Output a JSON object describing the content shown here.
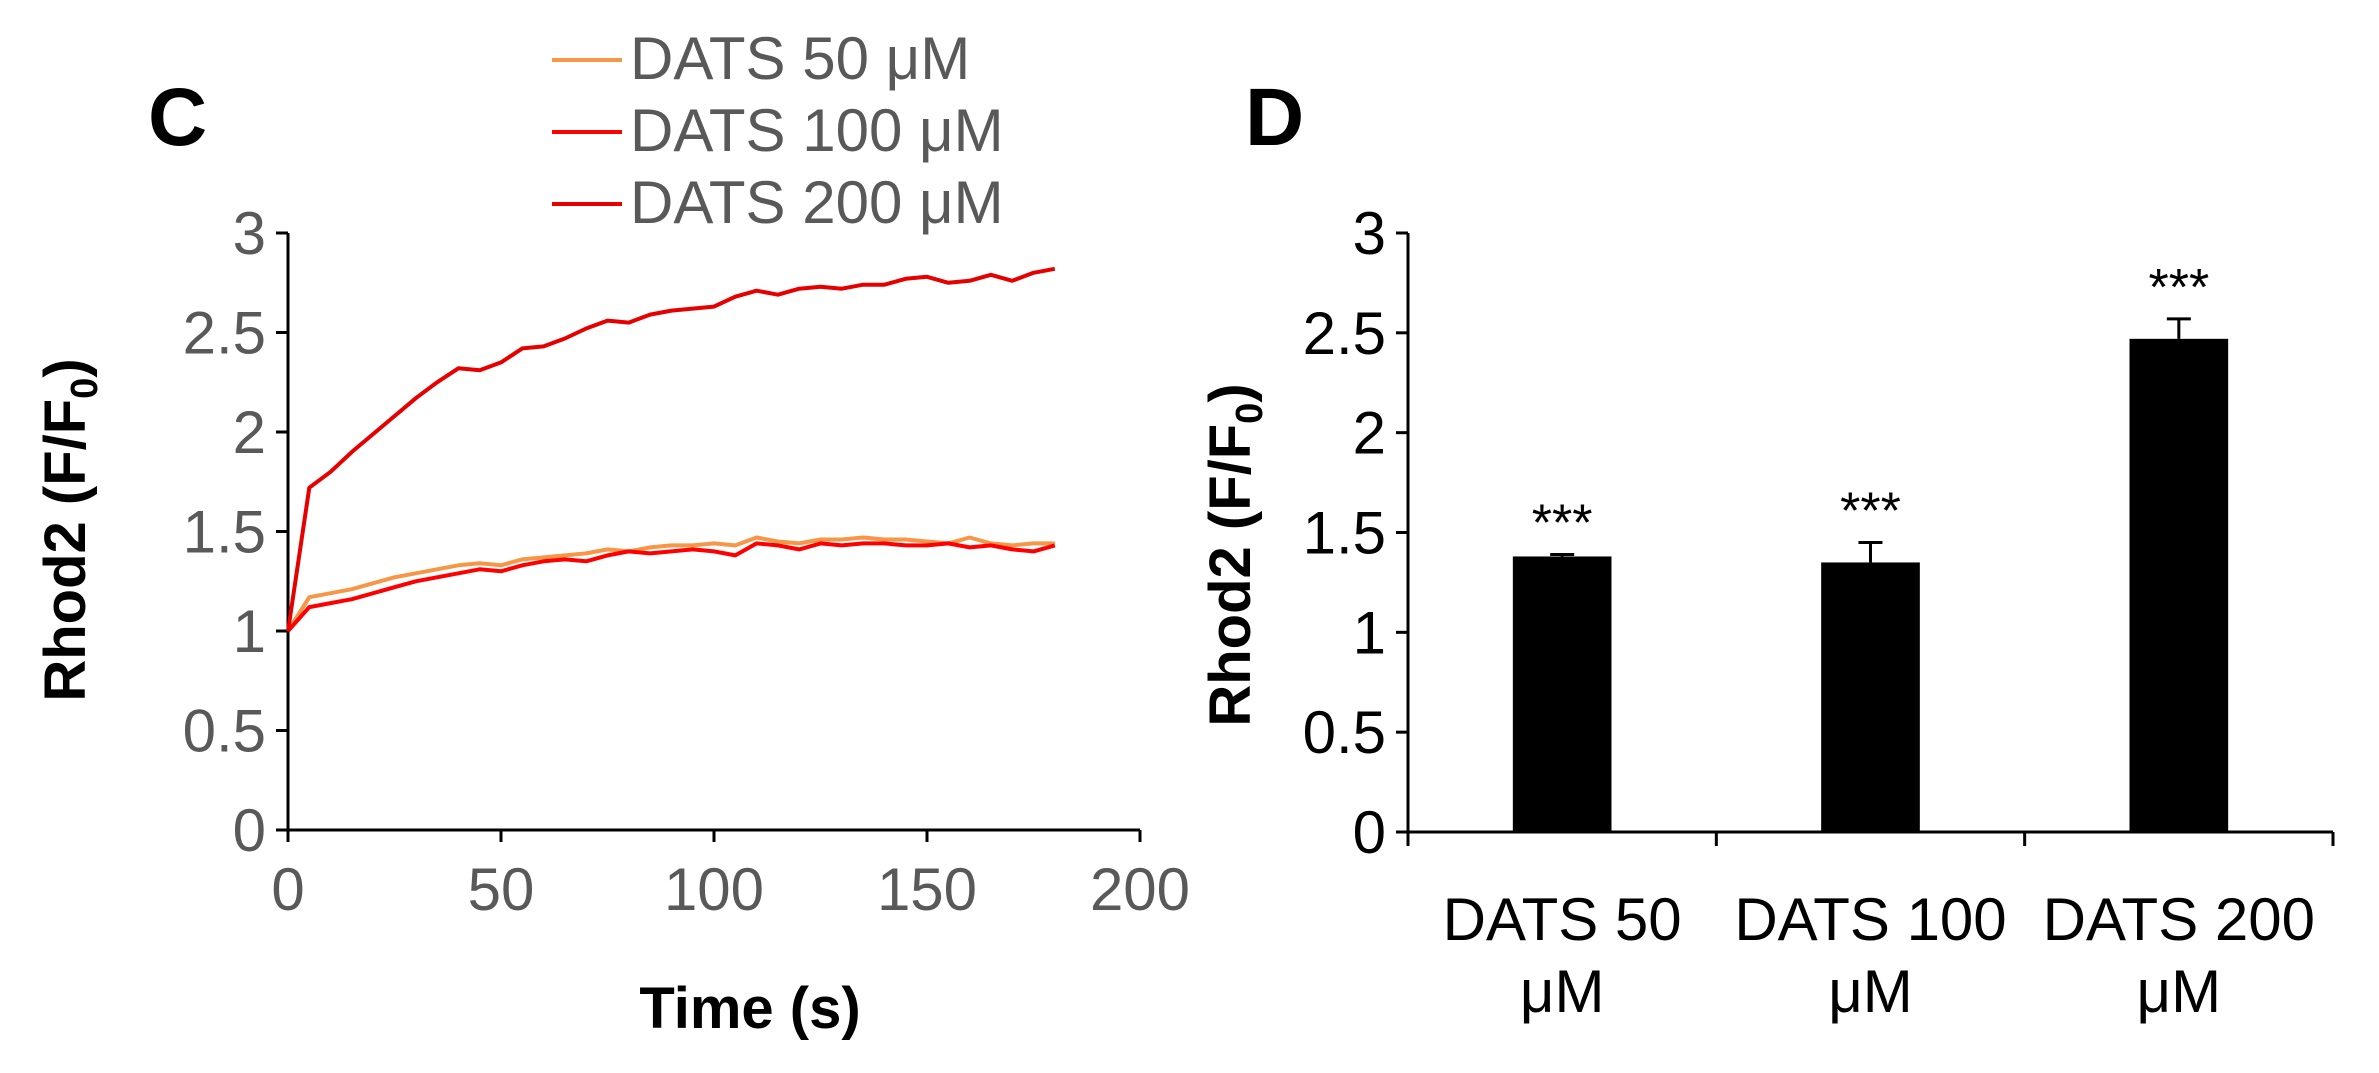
{
  "chart_data": [
    {
      "panel": "C",
      "type": "line",
      "xlabel": "Time (s)",
      "ylabel_main": "Rhod2 (F/F",
      "ylabel_sub": "0",
      "ylabel_close": ")",
      "xlim": [
        0,
        200
      ],
      "ylim": [
        0,
        3
      ],
      "xticks": [
        "0",
        "50",
        "100",
        "150",
        "200"
      ],
      "yticks": [
        "0",
        "0.5",
        "1",
        "1.5",
        "2",
        "2.5",
        "3"
      ],
      "x": [
        0,
        5,
        10,
        15,
        20,
        25,
        30,
        35,
        40,
        45,
        50,
        55,
        60,
        65,
        70,
        75,
        80,
        85,
        90,
        95,
        100,
        105,
        110,
        115,
        120,
        125,
        130,
        135,
        140,
        145,
        150,
        155,
        160,
        165,
        170,
        175,
        180
      ],
      "series": [
        {
          "name": "DATS 50 μM",
          "color": "#F79646",
          "values": [
            1.0,
            1.17,
            1.19,
            1.21,
            1.24,
            1.27,
            1.29,
            1.31,
            1.33,
            1.34,
            1.33,
            1.36,
            1.37,
            1.38,
            1.39,
            1.41,
            1.4,
            1.42,
            1.43,
            1.43,
            1.44,
            1.43,
            1.47,
            1.45,
            1.44,
            1.46,
            1.46,
            1.47,
            1.46,
            1.46,
            1.45,
            1.44,
            1.47,
            1.44,
            1.43,
            1.44,
            1.44
          ]
        },
        {
          "name": "DATS 100 μM",
          "color": "#FF0000",
          "values": [
            1.0,
            1.12,
            1.14,
            1.16,
            1.19,
            1.22,
            1.25,
            1.27,
            1.29,
            1.31,
            1.3,
            1.33,
            1.35,
            1.36,
            1.35,
            1.38,
            1.4,
            1.39,
            1.4,
            1.41,
            1.4,
            1.38,
            1.44,
            1.43,
            1.41,
            1.44,
            1.43,
            1.44,
            1.44,
            1.43,
            1.43,
            1.44,
            1.42,
            1.43,
            1.41,
            1.4,
            1.43
          ]
        },
        {
          "name": "DATS 200 μM",
          "color": "#E60000",
          "values": [
            1.0,
            1.72,
            1.8,
            1.9,
            1.99,
            2.08,
            2.17,
            2.25,
            2.32,
            2.31,
            2.35,
            2.42,
            2.43,
            2.47,
            2.52,
            2.56,
            2.55,
            2.59,
            2.61,
            2.62,
            2.63,
            2.68,
            2.71,
            2.69,
            2.72,
            2.73,
            2.72,
            2.74,
            2.74,
            2.77,
            2.78,
            2.75,
            2.76,
            2.79,
            2.76,
            2.8,
            2.82
          ]
        }
      ]
    },
    {
      "panel": "D",
      "type": "bar",
      "ylabel_main": "Rhod2 (F/F",
      "ylabel_sub": "0",
      "ylabel_close": ")",
      "ylim": [
        0,
        3
      ],
      "yticks": [
        "0",
        "0.5",
        "1",
        "1.5",
        "2",
        "2.5",
        "3"
      ],
      "categories": [
        {
          "line1": "DATS 50",
          "line2": "μM"
        },
        {
          "line1": "DATS 100",
          "line2": "μM"
        },
        {
          "line1": "DATS 200",
          "line2": "μM"
        }
      ],
      "values": [
        1.38,
        1.35,
        2.47
      ],
      "errors": [
        0.01,
        0.1,
        0.1
      ],
      "annotations": [
        "***",
        "***",
        "***"
      ],
      "bar_color": "#000000"
    }
  ]
}
